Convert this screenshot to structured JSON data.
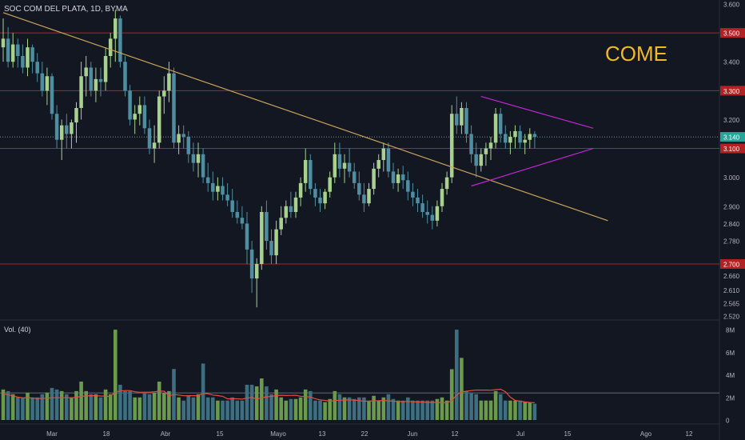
{
  "chart_data": {
    "type": "candlestick",
    "title": "SOC COM DEL PLATA, 1D, BYMA",
    "watermark": "COME",
    "interval": "1D",
    "colors": {
      "background": "#131722",
      "up": "#a8d18d",
      "down": "#4f8ea0",
      "vol_up": "#6a9a4c",
      "vol_down": "#3d6f80",
      "resistance": "#b22222",
      "trendline": "#c9a55a",
      "triangle": "#c026d3",
      "vol_ma": "#e74c3c",
      "watermark": "#f0b928",
      "current": "#26a69a"
    },
    "price_axis": {
      "ylim": [
        2.52,
        3.6
      ],
      "ticks": [
        "3.600",
        "3.500",
        "3.400",
        "3.300",
        "3.200",
        "3.140",
        "3.100",
        "3.000",
        "2.900",
        "2.840",
        "2.780",
        "2.700",
        "2.660",
        "2.610",
        "2.565",
        "2.520"
      ]
    },
    "x_axis": {
      "ticks": [
        "Mar",
        "18",
        "Abr",
        "15",
        "Mayo",
        "13",
        "22",
        "Jun",
        "12",
        "Jul",
        "15",
        "Ago",
        "12"
      ]
    },
    "horizontal_levels": [
      {
        "value": 3.5,
        "label": "3.500"
      },
      {
        "value": 3.3,
        "label": "3.300"
      },
      {
        "value": 3.1,
        "label": "3.100"
      },
      {
        "value": 2.7,
        "label": "2.700"
      }
    ],
    "current_price": {
      "value": 3.14,
      "label": "3.140"
    },
    "trendline": {
      "from": {
        "index": 0,
        "price": 3.57
      },
      "to": {
        "index": 124,
        "price": 2.85
      }
    },
    "triangle": {
      "upper": {
        "from": {
          "index": 98,
          "price": 3.28
        },
        "to": {
          "index": 121,
          "price": 3.17
        }
      },
      "lower": {
        "from": {
          "index": 96,
          "price": 2.97
        },
        "to": {
          "index": 121,
          "price": 3.1
        }
      }
    },
    "ohlc": [
      [
        3.45,
        3.55,
        3.4,
        3.48
      ],
      [
        3.48,
        3.52,
        3.38,
        3.4
      ],
      [
        3.4,
        3.5,
        3.38,
        3.46
      ],
      [
        3.46,
        3.48,
        3.38,
        3.42
      ],
      [
        3.42,
        3.46,
        3.36,
        3.38
      ],
      [
        3.38,
        3.48,
        3.35,
        3.45
      ],
      [
        3.45,
        3.46,
        3.36,
        3.4
      ],
      [
        3.4,
        3.43,
        3.33,
        3.36
      ],
      [
        3.36,
        3.4,
        3.28,
        3.3
      ],
      [
        3.3,
        3.38,
        3.25,
        3.35
      ],
      [
        3.35,
        3.36,
        3.2,
        3.22
      ],
      [
        3.22,
        3.25,
        3.1,
        3.13
      ],
      [
        3.13,
        3.2,
        3.06,
        3.18
      ],
      [
        3.18,
        3.22,
        3.1,
        3.15
      ],
      [
        3.15,
        3.2,
        3.1,
        3.19
      ],
      [
        3.19,
        3.26,
        3.12,
        3.24
      ],
      [
        3.24,
        3.4,
        3.2,
        3.35
      ],
      [
        3.35,
        3.42,
        3.28,
        3.38
      ],
      [
        3.38,
        3.4,
        3.28,
        3.3
      ],
      [
        3.3,
        3.38,
        3.26,
        3.34
      ],
      [
        3.34,
        3.38,
        3.28,
        3.33
      ],
      [
        3.33,
        3.45,
        3.3,
        3.42
      ],
      [
        3.42,
        3.5,
        3.38,
        3.48
      ],
      [
        3.48,
        3.58,
        3.4,
        3.55
      ],
      [
        3.55,
        3.56,
        3.38,
        3.4
      ],
      [
        3.4,
        3.42,
        3.28,
        3.3
      ],
      [
        3.3,
        3.32,
        3.18,
        3.2
      ],
      [
        3.2,
        3.25,
        3.15,
        3.22
      ],
      [
        3.22,
        3.28,
        3.18,
        3.25
      ],
      [
        3.25,
        3.28,
        3.15,
        3.17
      ],
      [
        3.17,
        3.2,
        3.08,
        3.1
      ],
      [
        3.1,
        3.18,
        3.05,
        3.12
      ],
      [
        3.12,
        3.3,
        3.1,
        3.28
      ],
      [
        3.28,
        3.35,
        3.22,
        3.3
      ],
      [
        3.3,
        3.4,
        3.26,
        3.36
      ],
      [
        3.36,
        3.38,
        3.1,
        3.12
      ],
      [
        3.12,
        3.18,
        3.08,
        3.15
      ],
      [
        3.15,
        3.18,
        3.1,
        3.14
      ],
      [
        3.14,
        3.16,
        3.05,
        3.08
      ],
      [
        3.08,
        3.12,
        3.02,
        3.05
      ],
      [
        3.05,
        3.12,
        3.0,
        3.08
      ],
      [
        3.08,
        3.1,
        2.98,
        3.0
      ],
      [
        3.0,
        3.05,
        2.95,
        2.98
      ],
      [
        2.98,
        3.02,
        2.92,
        2.95
      ],
      [
        2.95,
        3.0,
        2.92,
        2.97
      ],
      [
        2.97,
        3.0,
        2.92,
        2.94
      ],
      [
        2.94,
        2.98,
        2.9,
        2.92
      ],
      [
        2.92,
        2.96,
        2.86,
        2.88
      ],
      [
        2.88,
        2.92,
        2.84,
        2.86
      ],
      [
        2.86,
        2.9,
        2.82,
        2.84
      ],
      [
        2.84,
        2.88,
        2.7,
        2.75
      ],
      [
        2.75,
        2.78,
        2.6,
        2.65
      ],
      [
        2.65,
        2.72,
        2.55,
        2.7
      ],
      [
        2.7,
        2.9,
        2.68,
        2.88
      ],
      [
        2.88,
        2.92,
        2.75,
        2.78
      ],
      [
        2.78,
        2.82,
        2.7,
        2.73
      ],
      [
        2.73,
        2.85,
        2.7,
        2.82
      ],
      [
        2.82,
        2.9,
        2.8,
        2.86
      ],
      [
        2.86,
        2.92,
        2.84,
        2.9
      ],
      [
        2.9,
        2.95,
        2.86,
        2.88
      ],
      [
        2.88,
        2.95,
        2.86,
        2.93
      ],
      [
        2.93,
        3.0,
        2.9,
        2.98
      ],
      [
        2.98,
        3.1,
        2.95,
        3.06
      ],
      [
        3.06,
        3.08,
        2.94,
        2.96
      ],
      [
        2.96,
        2.98,
        2.9,
        2.93
      ],
      [
        2.93,
        2.96,
        2.88,
        2.91
      ],
      [
        2.91,
        2.96,
        2.89,
        2.95
      ],
      [
        2.95,
        3.02,
        2.93,
        3.0
      ],
      [
        3.0,
        3.12,
        2.98,
        3.08
      ],
      [
        3.08,
        3.12,
        3.0,
        3.03
      ],
      [
        3.03,
        3.08,
        2.98,
        3.05
      ],
      [
        3.05,
        3.1,
        3.0,
        3.02
      ],
      [
        3.02,
        3.05,
        2.96,
        2.98
      ],
      [
        2.98,
        3.02,
        2.92,
        2.94
      ],
      [
        2.94,
        2.98,
        2.88,
        2.91
      ],
      [
        2.91,
        2.98,
        2.9,
        2.96
      ],
      [
        2.96,
        3.05,
        2.94,
        3.03
      ],
      [
        3.03,
        3.08,
        3.0,
        3.06
      ],
      [
        3.06,
        3.12,
        3.02,
        3.1
      ],
      [
        3.1,
        3.12,
        3.0,
        3.02
      ],
      [
        3.02,
        3.05,
        2.96,
        2.98
      ],
      [
        2.98,
        3.03,
        2.95,
        3.01
      ],
      [
        3.01,
        3.04,
        2.96,
        2.99
      ],
      [
        2.99,
        3.02,
        2.92,
        2.95
      ],
      [
        2.95,
        2.98,
        2.9,
        2.93
      ],
      [
        2.93,
        2.96,
        2.88,
        2.91
      ],
      [
        2.91,
        2.94,
        2.86,
        2.88
      ],
      [
        2.88,
        2.92,
        2.84,
        2.87
      ],
      [
        2.87,
        2.9,
        2.82,
        2.85
      ],
      [
        2.85,
        2.92,
        2.83,
        2.9
      ],
      [
        2.9,
        2.98,
        2.88,
        2.96
      ],
      [
        2.96,
        3.02,
        2.94,
        3.0
      ],
      [
        3.0,
        3.25,
        2.98,
        3.22
      ],
      [
        3.22,
        3.28,
        3.15,
        3.18
      ],
      [
        3.18,
        3.26,
        3.15,
        3.24
      ],
      [
        3.24,
        3.26,
        3.12,
        3.15
      ],
      [
        3.15,
        3.18,
        3.05,
        3.08
      ],
      [
        3.08,
        3.12,
        3.0,
        3.04
      ],
      [
        3.04,
        3.1,
        3.02,
        3.08
      ],
      [
        3.08,
        3.12,
        3.04,
        3.1
      ],
      [
        3.1,
        3.14,
        3.06,
        3.12
      ],
      [
        3.12,
        3.24,
        3.1,
        3.22
      ],
      [
        3.22,
        3.24,
        3.12,
        3.15
      ],
      [
        3.15,
        3.18,
        3.1,
        3.12
      ],
      [
        3.12,
        3.16,
        3.08,
        3.14
      ],
      [
        3.14,
        3.18,
        3.1,
        3.16
      ],
      [
        3.16,
        3.18,
        3.1,
        3.12
      ],
      [
        3.12,
        3.15,
        3.08,
        3.13
      ],
      [
        3.13,
        3.17,
        3.1,
        3.15
      ],
      [
        3.15,
        3.16,
        3.1,
        3.14
      ]
    ],
    "volume_axis": {
      "ylim": [
        0,
        8.5
      ],
      "ticks": [
        "8M",
        "6M",
        "4M",
        "2M",
        "0"
      ],
      "tick_values": [
        8,
        6,
        4,
        2,
        0
      ]
    },
    "volume_label": "Vol. (40)",
    "volume_ma_level": 2.4
  }
}
